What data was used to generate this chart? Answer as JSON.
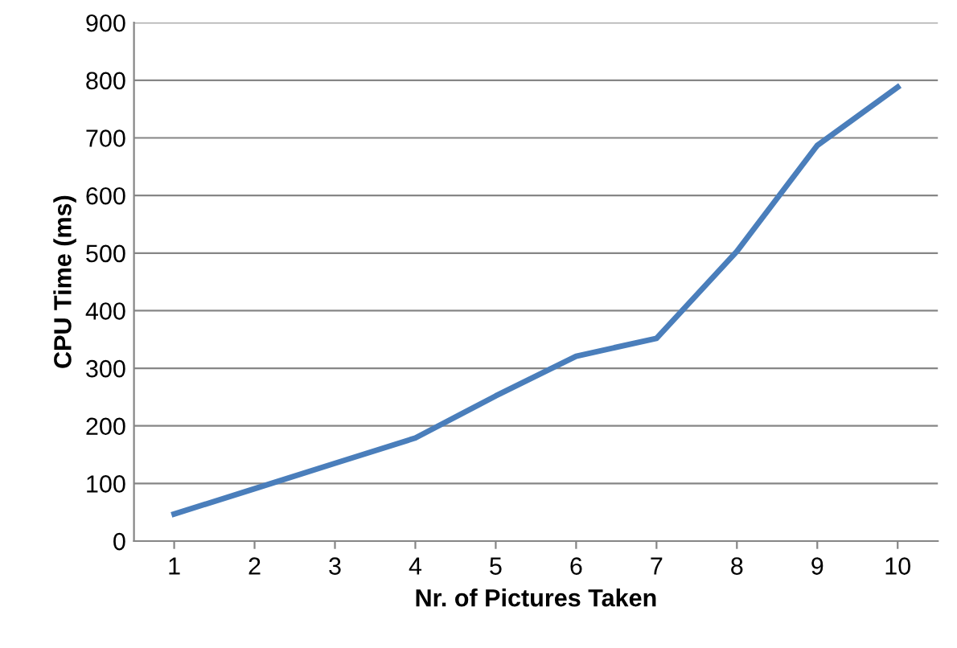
{
  "chart_data": {
    "type": "line",
    "xlabel": "Nr. of Pictures Taken",
    "ylabel": "CPU Time (ms)",
    "categories": [
      "1",
      "2",
      "3",
      "4",
      "5",
      "6",
      "7",
      "8",
      "9",
      "10"
    ],
    "series": [
      {
        "color": "#4a7ebb",
        "values": [
          47,
          91,
          135,
          179,
          252,
          321,
          352,
          503,
          687,
          788
        ]
      }
    ],
    "ylim": [
      0,
      900
    ],
    "yticks": [
      0,
      100,
      200,
      300,
      400,
      500,
      600,
      700,
      800,
      900
    ],
    "grid": "y",
    "legend": false,
    "marker": "none",
    "line_style": "solid"
  }
}
